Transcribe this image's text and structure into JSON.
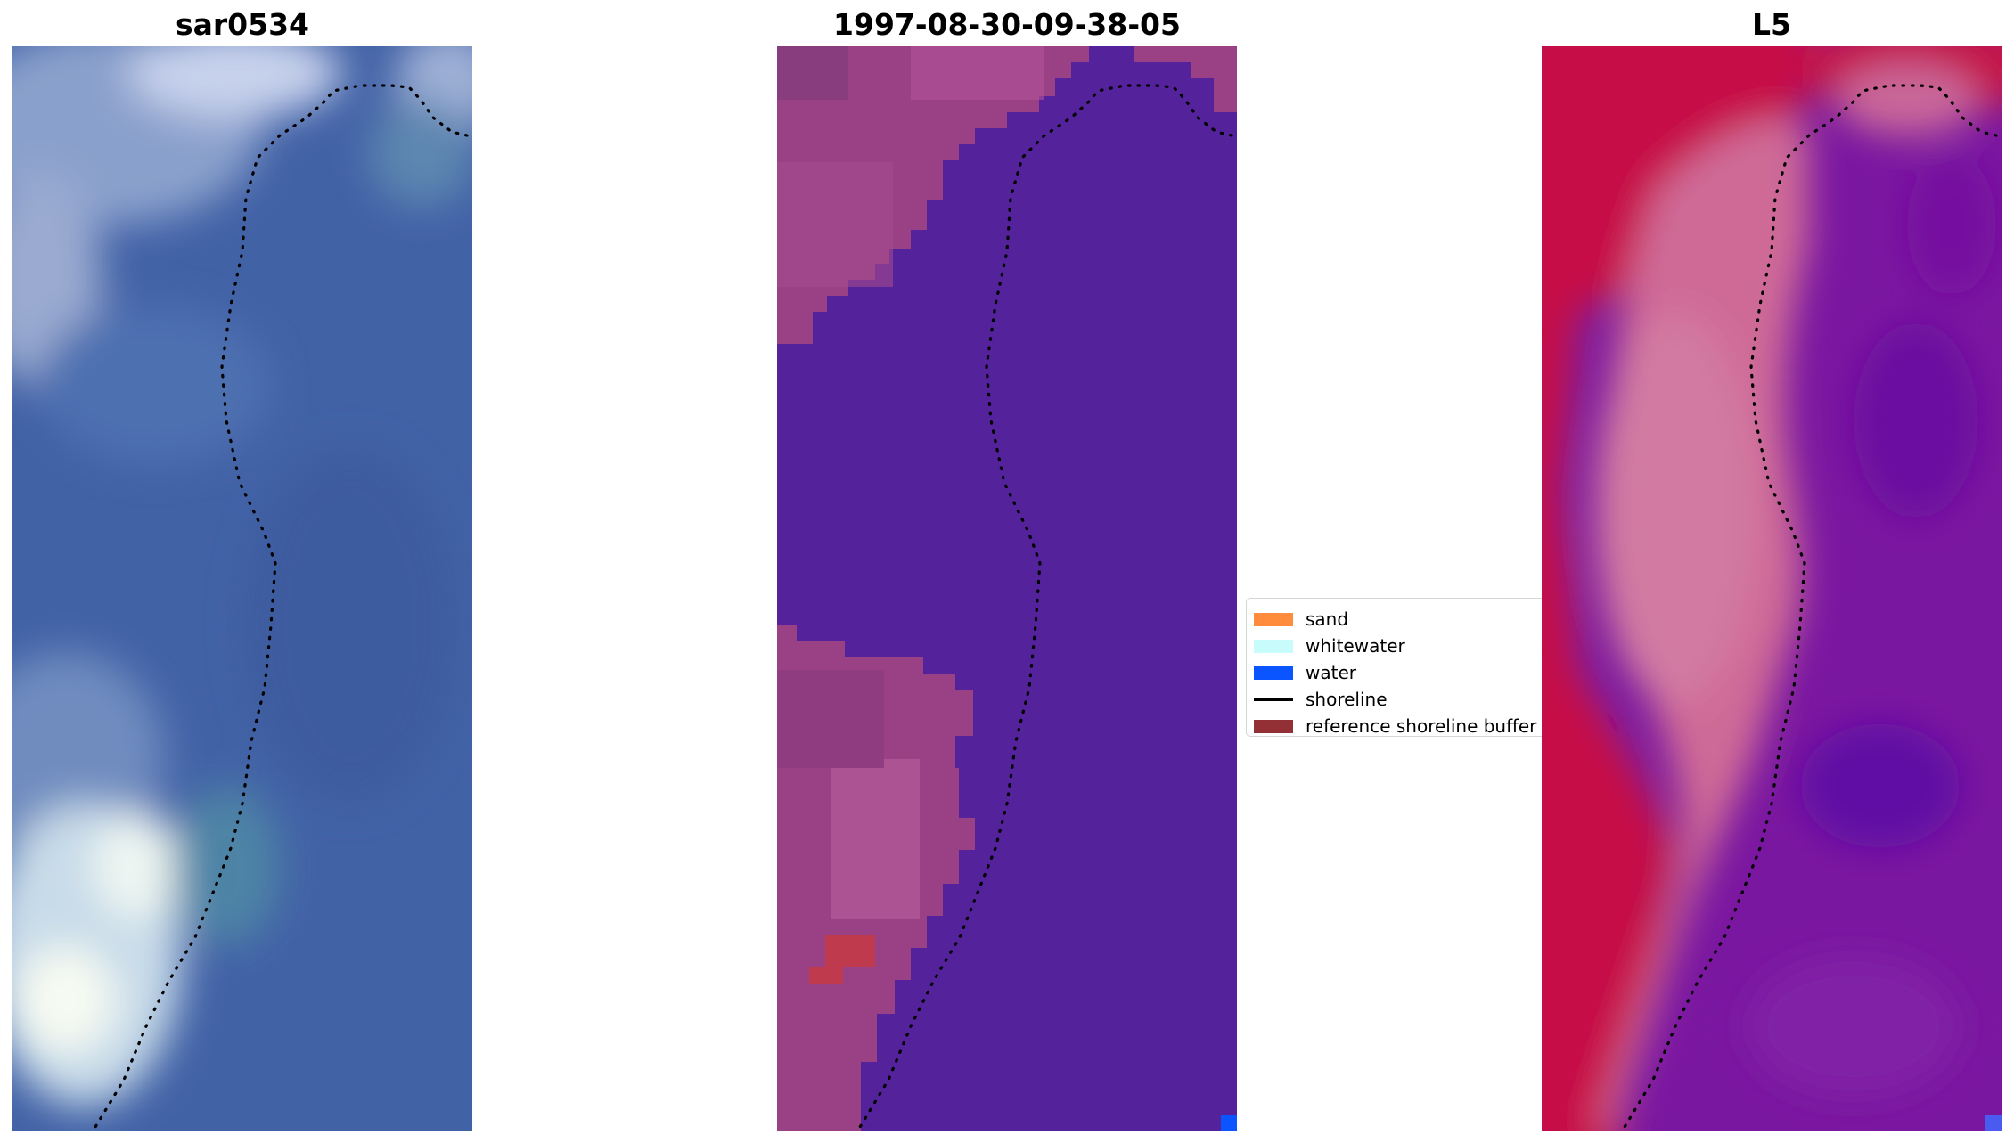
{
  "panels": [
    {
      "title": "sar0534"
    },
    {
      "title": "1997-08-30-09-38-05"
    },
    {
      "title": "L5"
    }
  ],
  "legend": {
    "items": [
      {
        "label": "sand",
        "color": "#ff8c3c",
        "kind": "patch"
      },
      {
        "label": "whitewater",
        "color": "#c8fcfc",
        "kind": "patch"
      },
      {
        "label": "water",
        "color": "#0a55ff",
        "kind": "patch"
      },
      {
        "label": "shoreline",
        "color": "#000000",
        "kind": "line"
      },
      {
        "label": "reference shoreline buffer",
        "color": "#933036",
        "kind": "patch"
      }
    ]
  },
  "colors": {
    "rgb_water": "#4262a6",
    "classified_water": "#54229a",
    "classified_land": "#9a4185",
    "reference_buffer": "#c03a4e",
    "index_land": "#c60d47",
    "index_transition": "#cf6a97",
    "index_water": "#6d0f9e"
  }
}
